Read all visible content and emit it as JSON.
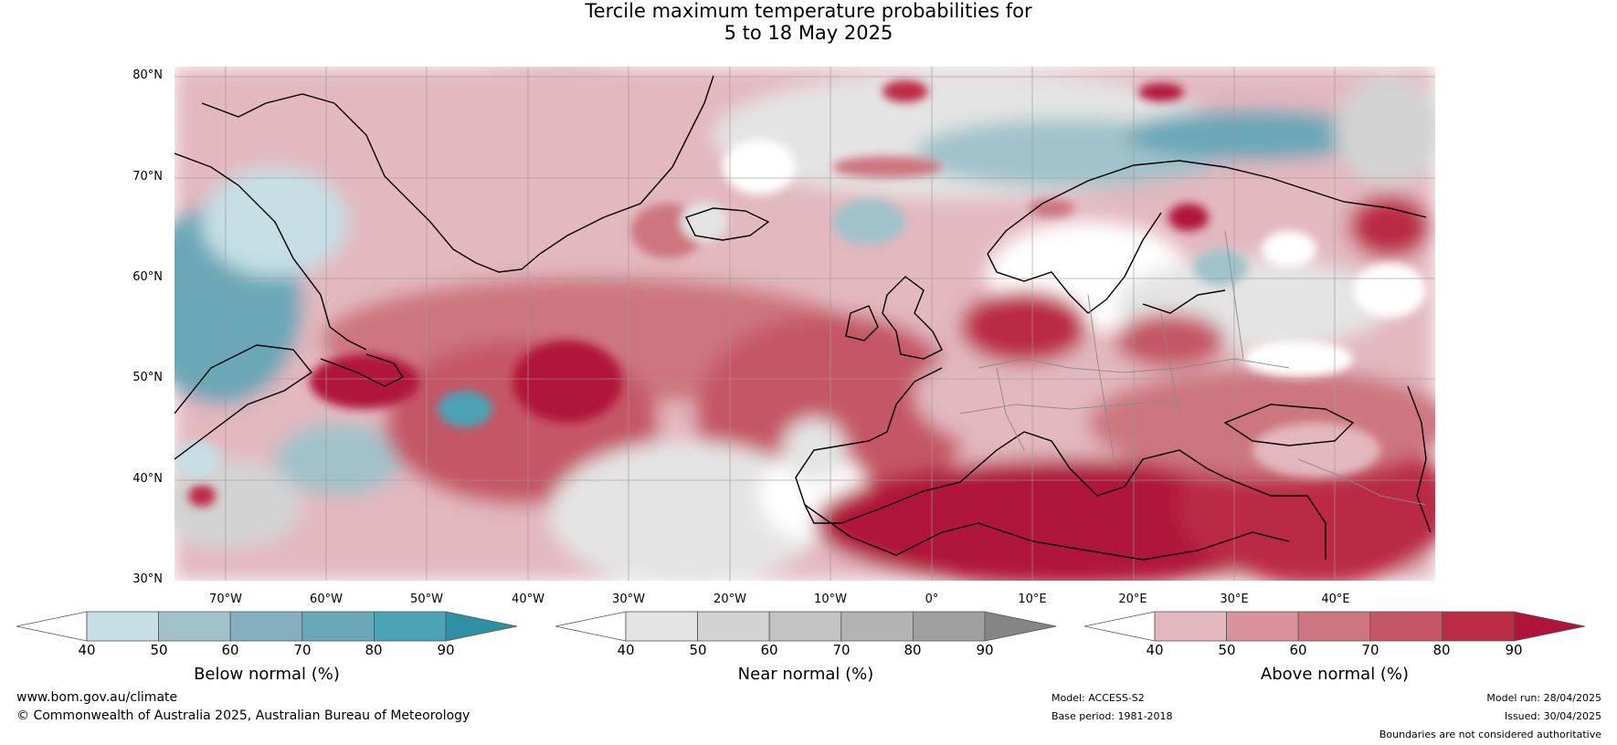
{
  "title": {
    "line1": "Tercile maximum temperature probabilities for",
    "line2": "5 to 18 May 2025"
  },
  "map": {
    "lat_labels": [
      "80°N",
      "70°N",
      "60°N",
      "50°N",
      "40°N",
      "30°N"
    ],
    "lon_labels": [
      "70°W",
      "60°W",
      "50°W",
      "40°W",
      "30°W",
      "20°W",
      "10°W",
      "0°",
      "10°E",
      "20°E",
      "30°E",
      "40°E"
    ],
    "extent": {
      "lon_min": -75,
      "lon_max": 50,
      "lat_min": 30,
      "lat_max": 81
    }
  },
  "colorbars": [
    {
      "name": "below",
      "title": "Below normal (%)",
      "ticks": [
        "40",
        "50",
        "60",
        "70",
        "80",
        "90"
      ],
      "colors": [
        "#ffffff",
        "#c5dfe5",
        "#a1c2ca",
        "#85afbe",
        "#6aa7b7",
        "#4ba3b5",
        "#2f8fa4"
      ]
    },
    {
      "name": "near",
      "title": "Near normal (%)",
      "ticks": [
        "40",
        "50",
        "60",
        "70",
        "80",
        "90"
      ],
      "colors": [
        "#ffffff",
        "#e4e4e4",
        "#d3d3d3",
        "#c3c3c3",
        "#b3b3b3",
        "#9f9f9f",
        "#858585"
      ]
    },
    {
      "name": "above",
      "title": "Above normal (%)",
      "ticks": [
        "40",
        "50",
        "60",
        "70",
        "80",
        "90"
      ],
      "colors": [
        "#ffffff",
        "#e3b8bf",
        "#d9929b",
        "#cd7680",
        "#c55665",
        "#bb2c44",
        "#b0143a"
      ]
    }
  ],
  "footer": {
    "website": "www.bom.gov.au/climate",
    "copyright": "© Commonwealth of Australia 2025, Australian Bureau of Meteorology",
    "model": "Model: ACCESS-S2",
    "base_period": "Base period: 1981-2018",
    "model_run": "Model run: 28/04/2025",
    "issued": "Issued: 30/04/2025",
    "disclaimer": "Boundaries are not considered authoritative"
  }
}
